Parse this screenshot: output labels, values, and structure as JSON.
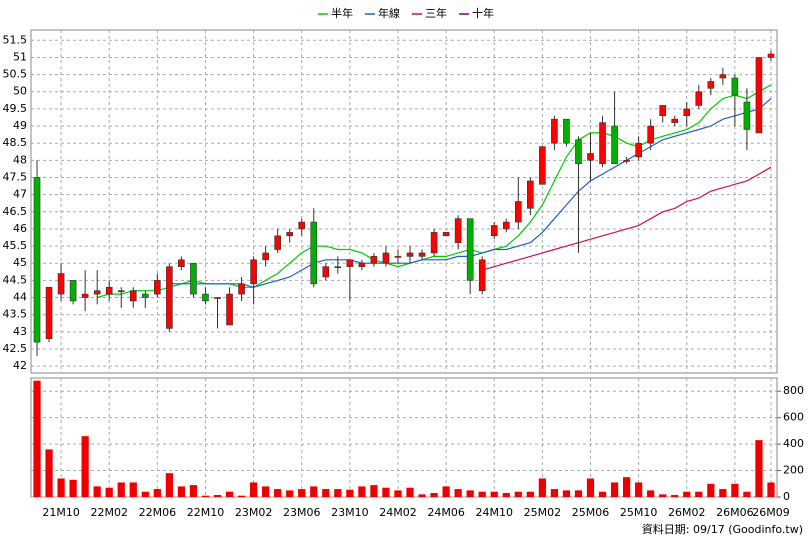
{
  "chart_data": {
    "type": "candlestick",
    "categories": [
      null,
      null,
      "21M10",
      null,
      null,
      null,
      "22M02",
      null,
      null,
      null,
      "22M06",
      null,
      null,
      null,
      "22M10",
      null,
      null,
      null,
      "23M02",
      null,
      null,
      null,
      "23M06",
      null,
      null,
      null,
      "23M10",
      null,
      null,
      null,
      "24M02",
      null,
      null,
      null,
      "24M06",
      null,
      null,
      null,
      "24M10",
      null,
      null,
      null,
      "25M02",
      null,
      null,
      null,
      "25M06",
      null,
      null,
      null,
      "25M10",
      null,
      null,
      null,
      "26M02",
      null,
      null,
      null,
      "26M06",
      null,
      null,
      "26M09"
    ],
    "open": [
      47.5,
      42.8,
      44.1,
      44.5,
      44.0,
      44.1,
      44.1,
      44.2,
      43.9,
      44.1,
      44.1,
      43.1,
      44.9,
      45.0,
      44.1,
      44.0,
      43.2,
      44.1,
      44.4,
      45.1,
      45.4,
      45.8,
      46.0,
      46.2,
      44.6,
      44.9,
      44.9,
      44.9,
      45.0,
      45.0,
      45.2,
      45.2,
      45.2,
      45.3,
      45.8,
      45.6,
      46.3,
      44.2,
      45.8,
      46.0,
      46.2,
      46.6,
      47.3,
      48.5,
      49.2,
      48.6,
      48.0,
      47.9,
      49.0,
      48.0,
      48.1,
      48.5,
      49.3,
      49.1,
      49.3,
      49.6,
      50.1,
      50.4,
      50.4,
      49.7,
      48.8,
      51.0
    ],
    "high": [
      48.0,
      44.3,
      45.0,
      44.5,
      44.8,
      44.8,
      44.5,
      44.3,
      44.3,
      44.2,
      44.7,
      45.0,
      45.2,
      45.0,
      44.3,
      44.0,
      44.3,
      44.6,
      45.2,
      45.5,
      46.0,
      46.0,
      46.3,
      46.6,
      45.0,
      45.2,
      45.1,
      45.1,
      45.3,
      45.5,
      45.4,
      45.5,
      45.4,
      46.0,
      45.9,
      46.4,
      46.3,
      45.2,
      46.2,
      46.3,
      47.5,
      47.5,
      48.4,
      49.3,
      49.2,
      48.7,
      48.8,
      49.3,
      50.0,
      48.1,
      48.7,
      49.2,
      49.6,
      49.3,
      49.7,
      50.2,
      50.4,
      50.7,
      50.5,
      50.1,
      51.0,
      51.2
    ],
    "low": [
      42.3,
      42.7,
      43.9,
      43.8,
      43.6,
      43.8,
      43.9,
      43.7,
      43.7,
      43.7,
      44.0,
      43.0,
      44.8,
      44.0,
      43.8,
      43.1,
      43.2,
      43.9,
      43.8,
      44.9,
      45.3,
      45.6,
      45.8,
      44.3,
      44.5,
      44.7,
      43.9,
      44.8,
      44.9,
      44.9,
      45.0,
      45.0,
      45.1,
      45.2,
      45.8,
      45.4,
      44.1,
      44.1,
      45.7,
      45.9,
      46.0,
      46.4,
      47.3,
      48.3,
      48.4,
      45.3,
      47.4,
      47.8,
      47.9,
      47.9,
      48.0,
      48.3,
      49.1,
      49.0,
      49.0,
      49.5,
      49.9,
      50.2,
      49.0,
      48.3,
      48.8,
      50.9
    ],
    "close": [
      42.7,
      44.3,
      44.7,
      43.9,
      44.1,
      44.2,
      44.3,
      44.2,
      44.2,
      44.0,
      44.5,
      44.9,
      45.1,
      44.1,
      43.9,
      44.0,
      44.1,
      44.4,
      45.1,
      45.3,
      45.8,
      45.9,
      46.2,
      44.4,
      44.9,
      44.9,
      45.1,
      45.0,
      45.2,
      45.3,
      45.2,
      45.3,
      45.3,
      45.9,
      45.9,
      46.3,
      44.5,
      45.1,
      46.1,
      46.2,
      46.8,
      47.4,
      48.4,
      49.2,
      48.5,
      47.9,
      48.2,
      49.1,
      47.9,
      48.0,
      48.5,
      49.0,
      49.6,
      49.2,
      49.5,
      50.0,
      50.3,
      50.5,
      49.9,
      48.9,
      51.0,
      51.1
    ],
    "up_color": "#ff0000",
    "down_color": "#00b000",
    "ylim": [
      41.8,
      51.8
    ],
    "yticks": [
      42,
      42.5,
      43,
      43.5,
      44,
      44.5,
      45,
      45.5,
      46,
      46.5,
      47,
      47.5,
      48,
      48.5,
      49,
      49.5,
      50,
      50.5,
      51,
      51.5
    ],
    "grid": true,
    "legend": "top",
    "series": [
      {
        "name": "半年",
        "color": "#00cc00",
        "values": [
          null,
          null,
          null,
          null,
          null,
          44.0,
          44.1,
          44.1,
          44.2,
          44.2,
          44.2,
          44.3,
          44.4,
          44.5,
          44.4,
          44.4,
          44.4,
          44.3,
          44.3,
          44.5,
          44.7,
          45.0,
          45.3,
          45.5,
          45.5,
          45.4,
          45.4,
          45.3,
          45.1,
          45.0,
          44.9,
          45.0,
          45.1,
          45.2,
          45.2,
          45.3,
          45.4,
          45.3,
          45.4,
          45.5,
          45.8,
          46.2,
          46.7,
          47.4,
          48.1,
          48.6,
          48.8,
          48.8,
          48.7,
          48.5,
          48.4,
          48.6,
          48.7,
          48.8,
          48.9,
          49.1,
          49.5,
          49.8,
          49.9,
          49.8,
          50.0,
          50.2
        ]
      },
      {
        "name": "年線",
        "color": "#1f5fd0",
        "values": [
          null,
          null,
          null,
          null,
          null,
          null,
          null,
          null,
          null,
          null,
          null,
          44.4,
          44.4,
          44.4,
          44.4,
          44.4,
          44.4,
          44.4,
          44.3,
          44.4,
          44.5,
          44.6,
          44.8,
          45.0,
          45.1,
          45.1,
          45.1,
          45.0,
          45.0,
          45.0,
          45.0,
          45.0,
          45.1,
          45.1,
          45.1,
          45.2,
          45.2,
          45.3,
          45.4,
          45.4,
          45.5,
          45.6,
          45.9,
          46.3,
          46.7,
          47.1,
          47.4,
          47.6,
          47.8,
          48.0,
          48.2,
          48.4,
          48.6,
          48.7,
          48.8,
          48.9,
          49.0,
          49.2,
          49.3,
          49.4,
          49.5,
          49.8
        ]
      },
      {
        "name": "三年",
        "color": "#cc1150",
        "values": [
          null,
          null,
          null,
          null,
          null,
          null,
          null,
          null,
          null,
          null,
          null,
          null,
          null,
          null,
          null,
          null,
          null,
          null,
          null,
          null,
          null,
          null,
          null,
          null,
          null,
          null,
          null,
          null,
          null,
          null,
          null,
          null,
          null,
          null,
          null,
          null,
          null,
          44.8,
          44.9,
          45.0,
          45.1,
          45.2,
          45.3,
          45.4,
          45.5,
          45.6,
          45.7,
          45.8,
          45.9,
          46.0,
          46.1,
          46.3,
          46.5,
          46.6,
          46.8,
          46.9,
          47.1,
          47.2,
          47.3,
          47.4,
          47.6,
          47.8
        ]
      },
      {
        "name": "十年",
        "color": "#800080",
        "values": [
          null,
          null,
          null,
          null,
          null,
          null,
          null,
          null,
          null,
          null,
          null,
          null,
          null,
          null,
          null,
          null,
          null,
          null,
          null,
          null,
          null,
          null,
          null,
          null,
          null,
          null,
          null,
          null,
          null,
          null,
          null,
          null,
          null,
          null,
          null,
          null,
          null,
          null,
          null,
          null,
          null,
          null,
          null,
          null,
          null,
          null,
          null,
          null,
          null,
          null,
          null,
          null,
          null,
          null,
          null,
          null,
          null,
          null,
          null,
          null,
          null,
          null
        ]
      }
    ],
    "volume": {
      "color": "#ee0000",
      "values": [
        880,
        360,
        140,
        130,
        460,
        80,
        70,
        110,
        110,
        40,
        60,
        180,
        80,
        90,
        10,
        15,
        40,
        10,
        110,
        80,
        60,
        50,
        60,
        80,
        60,
        60,
        55,
        80,
        90,
        70,
        50,
        70,
        20,
        30,
        80,
        60,
        50,
        40,
        40,
        30,
        40,
        40,
        140,
        60,
        50,
        50,
        140,
        40,
        110,
        150,
        110,
        50,
        20,
        15,
        40,
        40,
        100,
        60,
        100,
        40,
        430,
        110
      ],
      "ylim": [
        0,
        900
      ],
      "yticks": [
        0,
        200,
        400,
        600,
        800
      ]
    },
    "footnote": "資料日期: 09/17 (Goodinfo.tw)"
  }
}
